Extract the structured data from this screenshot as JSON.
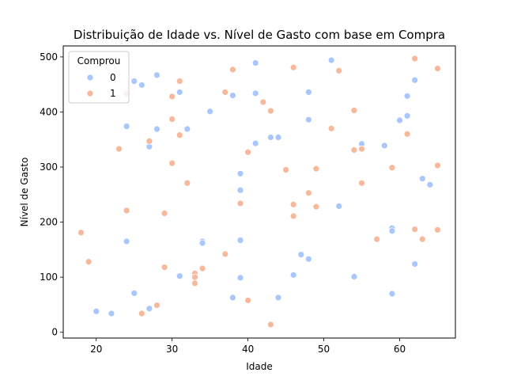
{
  "chart_data": {
    "type": "scatter",
    "title": "Distribuição de Idade vs. Nível de Gasto com base em Compra",
    "xlabel": "Idade",
    "ylabel": "Nível de Gasto",
    "xlim": [
      15.65,
      67.35
    ],
    "ylim": [
      -10.5,
      520
    ],
    "xticks": [
      20,
      30,
      40,
      50,
      60
    ],
    "yticks": [
      0,
      100,
      200,
      300,
      400,
      500
    ],
    "grid": false,
    "legend": {
      "title": "Comprou",
      "placement": "top-left"
    },
    "series": [
      {
        "name": "0",
        "color": "#aac7fd",
        "points": [
          [
            20,
            38
          ],
          [
            22,
            34
          ],
          [
            24,
            374
          ],
          [
            24,
            165
          ],
          [
            25,
            456
          ],
          [
            25,
            71
          ],
          [
            26,
            449
          ],
          [
            27,
            337
          ],
          [
            27,
            43
          ],
          [
            28,
            467
          ],
          [
            28,
            369
          ],
          [
            31,
            436
          ],
          [
            31,
            102
          ],
          [
            32,
            369
          ],
          [
            34,
            165
          ],
          [
            34,
            162
          ],
          [
            35,
            401
          ],
          [
            38,
            430
          ],
          [
            38,
            63
          ],
          [
            39,
            288
          ],
          [
            39,
            258
          ],
          [
            39,
            167
          ],
          [
            39,
            99
          ],
          [
            41,
            489
          ],
          [
            41,
            434
          ],
          [
            41,
            343
          ],
          [
            43,
            354
          ],
          [
            44,
            354
          ],
          [
            44,
            63
          ],
          [
            46,
            104
          ],
          [
            47,
            141
          ],
          [
            48,
            436
          ],
          [
            48,
            386
          ],
          [
            48,
            133
          ],
          [
            51,
            494
          ],
          [
            52,
            229
          ],
          [
            54,
            101
          ],
          [
            55,
            342
          ],
          [
            58,
            339
          ],
          [
            59,
            189
          ],
          [
            59,
            184
          ],
          [
            59,
            70
          ],
          [
            60,
            385
          ],
          [
            61,
            429
          ],
          [
            61,
            393
          ],
          [
            62,
            458
          ],
          [
            62,
            124
          ],
          [
            63,
            279
          ],
          [
            64,
            268
          ]
        ]
      },
      {
        "name": "1",
        "color": "#f7b89c",
        "points": [
          [
            18,
            181
          ],
          [
            19,
            128
          ],
          [
            23,
            333
          ],
          [
            24,
            433
          ],
          [
            24,
            221
          ],
          [
            26,
            34
          ],
          [
            27,
            347
          ],
          [
            28,
            49
          ],
          [
            29,
            216
          ],
          [
            29,
            118
          ],
          [
            30,
            428
          ],
          [
            30,
            387
          ],
          [
            30,
            307
          ],
          [
            31,
            456
          ],
          [
            31,
            358
          ],
          [
            32,
            271
          ],
          [
            33,
            107
          ],
          [
            33,
            100
          ],
          [
            33,
            89
          ],
          [
            34,
            116
          ],
          [
            37,
            436
          ],
          [
            37,
            142
          ],
          [
            38,
            477
          ],
          [
            39,
            234
          ],
          [
            40,
            327
          ],
          [
            40,
            58
          ],
          [
            42,
            418
          ],
          [
            43,
            402
          ],
          [
            43,
            14
          ],
          [
            45,
            295
          ],
          [
            46,
            481
          ],
          [
            46,
            232
          ],
          [
            46,
            211
          ],
          [
            48,
            253
          ],
          [
            49,
            297
          ],
          [
            49,
            228
          ],
          [
            51,
            370
          ],
          [
            52,
            475
          ],
          [
            54,
            403
          ],
          [
            54,
            331
          ],
          [
            55,
            333
          ],
          [
            55,
            271
          ],
          [
            57,
            169
          ],
          [
            59,
            299
          ],
          [
            61,
            360
          ],
          [
            62,
            497
          ],
          [
            62,
            187
          ],
          [
            63,
            169
          ],
          [
            65,
            479
          ],
          [
            65,
            303
          ],
          [
            65,
            186
          ]
        ]
      }
    ]
  }
}
